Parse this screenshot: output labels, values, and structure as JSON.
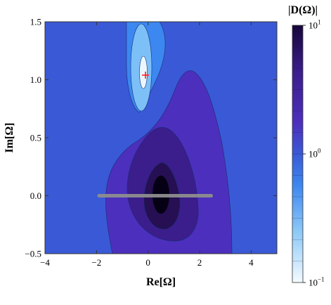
{
  "chart_data": {
    "type": "contour",
    "title": "",
    "xlabel": "Re[Ω]",
    "ylabel": "Im[Ω]",
    "xlim": [
      -4,
      5
    ],
    "ylim": [
      -0.5,
      1.5
    ],
    "x_ticks": [
      "−4",
      "−2",
      "0",
      "2",
      "4"
    ],
    "x_tick_values": [
      -4,
      -2,
      0,
      2,
      4
    ],
    "y_ticks": [
      "−0.5",
      "0.0",
      "0.5",
      "1.0",
      "1.5"
    ],
    "y_tick_values": [
      -0.5,
      0.0,
      0.5,
      1.0,
      1.5
    ],
    "colorbar": {
      "title": "|D(Ω)|",
      "scale": "log",
      "range": [
        0.1,
        10
      ],
      "labels": [
        {
          "base": "10",
          "exp": "1",
          "value": 10
        },
        {
          "base": "10",
          "exp": "0",
          "value": 1
        },
        {
          "base": "10",
          "exp": "−1",
          "value": 0.1
        }
      ]
    },
    "colors": {
      "background": "#3a59d6",
      "level_light1": "#3c87f0",
      "level_light2": "#7cc0f7",
      "level_light3": "#eaf7ff",
      "level_dark1": "#4d2fbd",
      "level_dark2": "#3b1d8b",
      "level_dark3": "#260f52",
      "level_dark4": "#050014",
      "marker": "#ff2020",
      "segment": "#8e8e8e"
    },
    "marker": {
      "type": "cross",
      "x": -0.1,
      "y": 1.04
    },
    "segment": {
      "x_from": -1.9,
      "x_to": 2.45,
      "y": 0.0
    }
  }
}
